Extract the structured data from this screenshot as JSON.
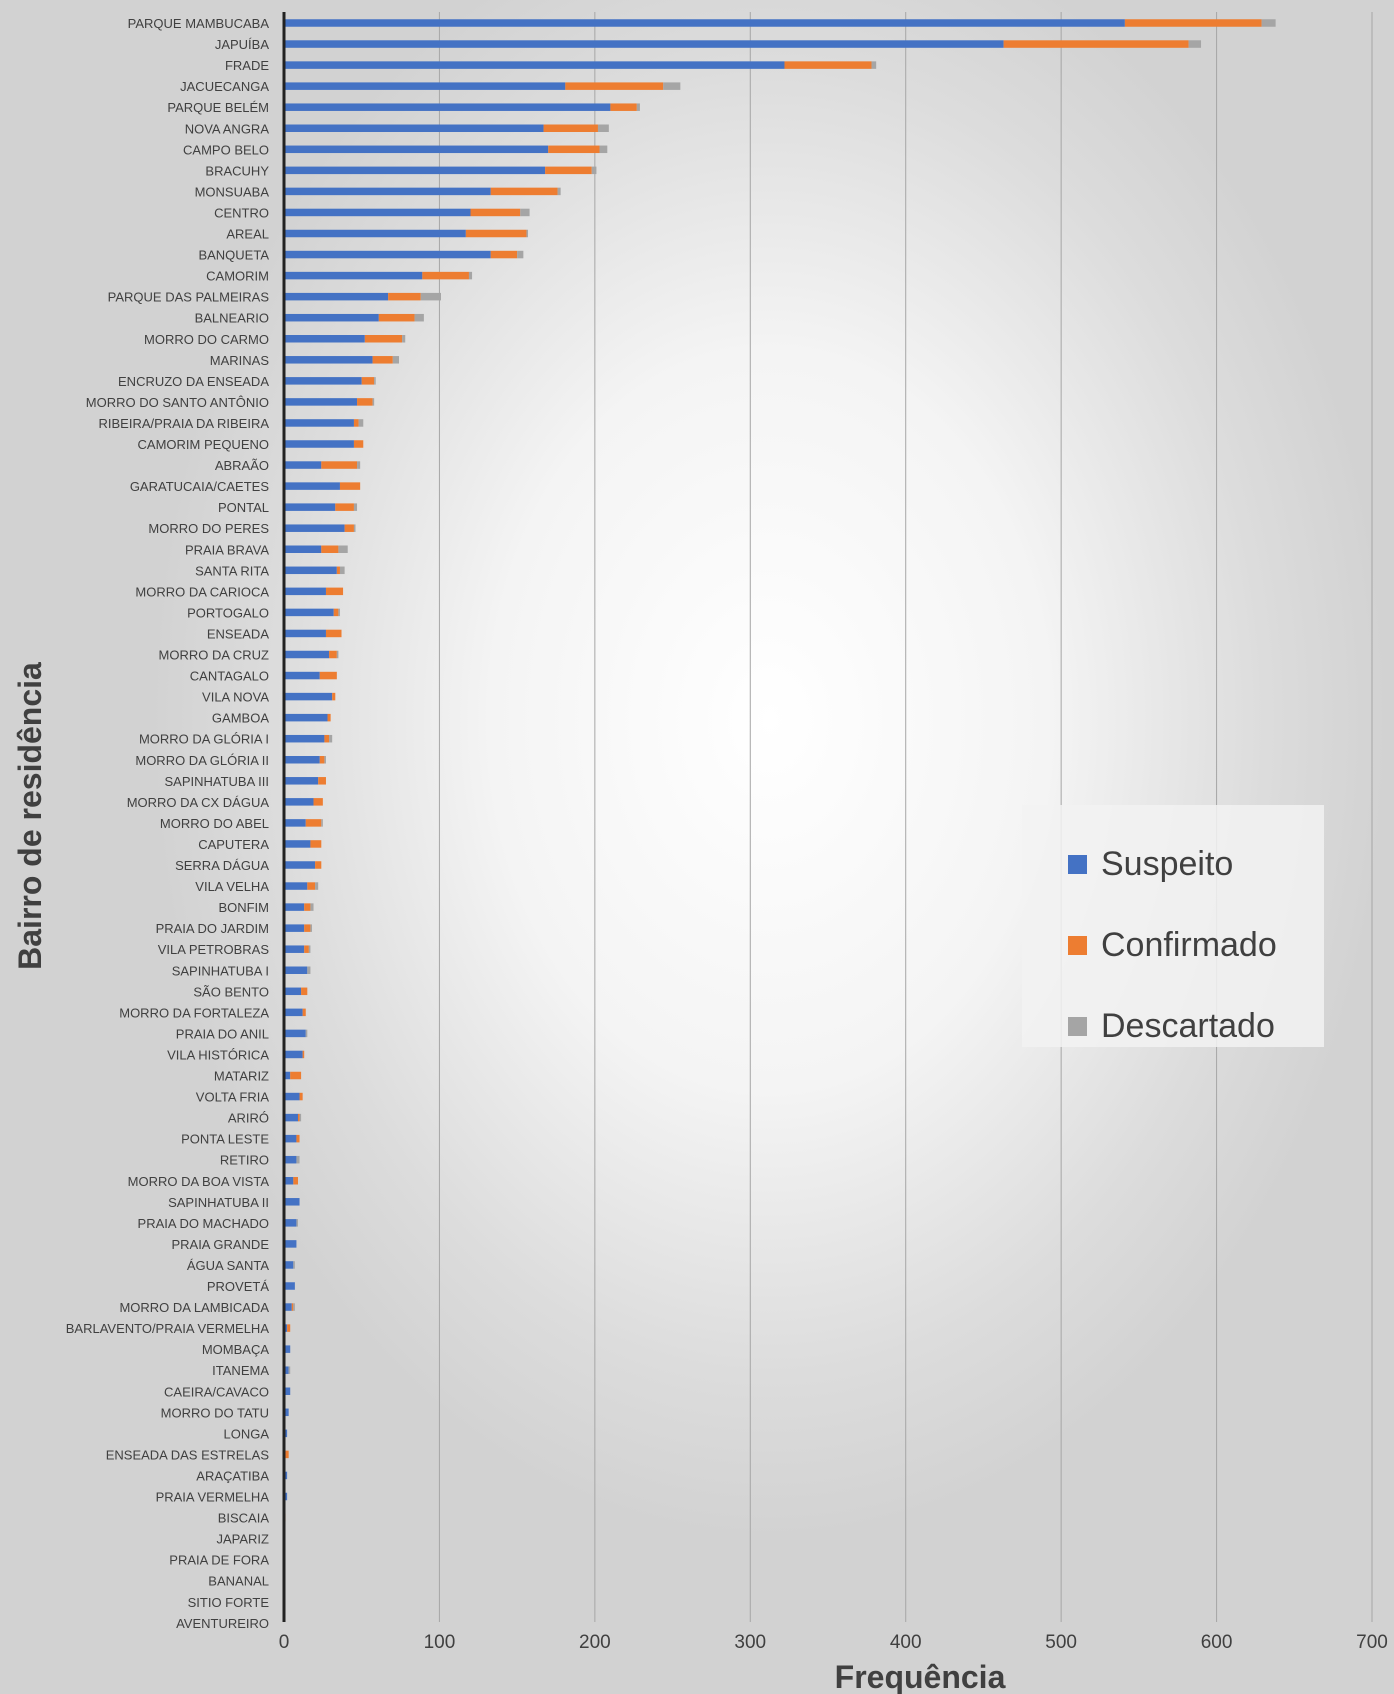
{
  "chart_data": {
    "type": "bar",
    "orientation": "horizontal",
    "stacked": true,
    "xlabel": "Frequência",
    "ylabel": "Bairro de residência",
    "xlim": [
      0,
      700
    ],
    "xticks": [
      "0",
      "100",
      "200",
      "300",
      "400",
      "500",
      "600",
      "700"
    ],
    "grid": true,
    "legend_position": "right",
    "categories": [
      "PARQUE MAMBUCABA",
      "JAPUÍBA",
      "FRADE",
      "JACUECANGA",
      "PARQUE BELÉM",
      "NOVA ANGRA",
      "CAMPO BELO",
      "BRACUHY",
      "MONSUABA",
      "CENTRO",
      "AREAL",
      "BANQUETA",
      "CAMORIM",
      "PARQUE DAS PALMEIRAS",
      "BALNEARIO",
      "MORRO DO CARMO",
      "MARINAS",
      "ENCRUZO DA ENSEADA",
      "MORRO DO SANTO ANTÔNIO",
      "RIBEIRA/PRAIA DA RIBEIRA",
      "CAMORIM PEQUENO",
      "ABRAÃO",
      "GARATUCAIA/CAETES",
      "PONTAL",
      "MORRO DO PERES",
      "PRAIA BRAVA",
      "SANTA RITA",
      "MORRO DA CARIOCA",
      "PORTOGALO",
      "ENSEADA",
      "MORRO DA CRUZ",
      "CANTAGALO",
      "VILA NOVA",
      "GAMBOA",
      "MORRO DA GLÓRIA I",
      "MORRO DA GLÓRIA II",
      "SAPINHATUBA III",
      "MORRO DA CX DÁGUA",
      "MORRO DO ABEL",
      "CAPUTERA",
      "SERRA DÁGUA",
      "VILA VELHA",
      "BONFIM",
      "PRAIA DO JARDIM",
      "VILA PETROBRAS",
      "SAPINHATUBA I",
      "SÃO BENTO",
      "MORRO DA FORTALEZA",
      "PRAIA DO ANIL",
      "VILA HISTÓRICA",
      "MATARIZ",
      "VOLTA FRIA",
      "ARIRÓ",
      "PONTA LESTE",
      "RETIRO",
      "MORRO DA BOA VISTA",
      "SAPINHATUBA II",
      "PRAIA DO MACHADO",
      "PRAIA GRANDE",
      "ÁGUA SANTA",
      "PROVETÁ",
      "MORRO DA LAMBICADA",
      "BARLAVENTO/PRAIA VERMELHA",
      "MOMBAÇA",
      "ITANEMA",
      "CAEIRA/CAVACO",
      "MORRO DO TATU",
      "LONGA",
      "ENSEADA DAS ESTRELAS",
      "ARAÇATIBA",
      "PRAIA VERMELHA",
      "BISCAIA",
      "JAPARIZ",
      "PRAIA DE FORA",
      "BANANAL",
      "SITIO FORTE",
      "AVENTUREIRO"
    ],
    "series": [
      {
        "name": "Suspeito",
        "color": "#4472C4",
        "values": [
          541,
          463,
          322,
          181,
          210,
          167,
          170,
          168,
          133,
          120,
          117,
          133,
          89,
          67,
          61,
          52,
          57,
          50,
          47,
          45,
          45,
          24,
          36,
          33,
          39,
          24,
          34,
          27,
          32,
          27,
          29,
          23,
          31,
          28,
          26,
          23,
          22,
          19,
          14,
          17,
          20,
          15,
          13,
          13,
          13,
          15,
          11,
          12,
          14,
          12,
          4,
          10,
          9,
          8,
          8,
          6,
          10,
          8,
          8,
          6,
          7,
          5,
          2,
          4,
          3,
          4,
          3,
          2,
          1,
          2,
          2,
          0,
          0,
          0,
          0,
          0,
          0
        ]
      },
      {
        "name": "Confirmado",
        "color": "#ED7D31",
        "values": [
          88,
          119,
          56,
          63,
          17,
          35,
          33,
          30,
          43,
          32,
          39,
          17,
          30,
          21,
          23,
          24,
          13,
          8,
          10,
          3,
          6,
          23,
          13,
          12,
          6,
          11,
          2,
          11,
          3,
          10,
          5,
          11,
          2,
          2,
          3,
          3,
          5,
          6,
          10,
          7,
          4,
          5,
          4,
          4,
          3,
          0,
          4,
          2,
          0,
          1,
          7,
          2,
          1,
          2,
          0,
          3,
          0,
          0,
          0,
          0,
          0,
          1,
          2,
          0,
          0,
          0,
          0,
          0,
          2,
          0,
          0,
          1,
          0,
          0,
          0,
          0,
          0
        ]
      },
      {
        "name": "Descartado",
        "color": "#A5A5A5",
        "values": [
          9,
          8,
          3,
          11,
          2,
          7,
          5,
          3,
          2,
          6,
          1,
          4,
          2,
          13,
          6,
          2,
          4,
          1,
          1,
          3,
          0,
          2,
          0,
          2,
          1,
          6,
          3,
          0,
          1,
          0,
          1,
          0,
          0,
          0,
          2,
          1,
          0,
          0,
          1,
          0,
          0,
          2,
          2,
          1,
          1,
          2,
          0,
          0,
          1,
          0,
          0,
          0,
          1,
          0,
          2,
          0,
          0,
          1,
          0,
          1,
          0,
          1,
          0,
          0,
          1,
          0,
          0,
          0,
          0,
          0,
          0,
          0,
          0,
          0,
          0,
          0,
          0
        ]
      }
    ]
  }
}
